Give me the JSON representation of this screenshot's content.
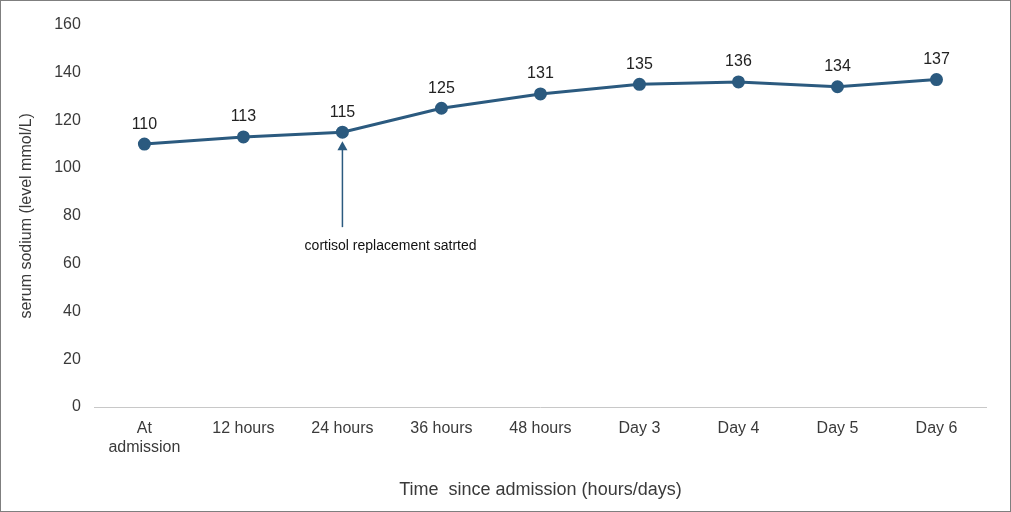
{
  "chart_data": {
    "type": "line",
    "x_label": "Time  since admission (hours/days)",
    "y_label": "serum sodium (level mmol/L)",
    "categories": [
      "At admission",
      "12 hours",
      "24 hours",
      "36 hours",
      "48 hours",
      "Day 3",
      "Day 4",
      "Day 5",
      "Day 6"
    ],
    "values": [
      110,
      113,
      115,
      125,
      131,
      135,
      136,
      134,
      137
    ],
    "color": "#2b5a7f",
    "marker": "circle",
    "line_style": "solid",
    "data_labels": true,
    "grid": false,
    "ylim": [
      0,
      160
    ],
    "yticks": [
      0,
      20,
      40,
      60,
      80,
      100,
      120,
      140,
      160
    ],
    "annotations": [
      {
        "text": "cortisol replacement satrted",
        "category": "24 hours"
      }
    ]
  }
}
